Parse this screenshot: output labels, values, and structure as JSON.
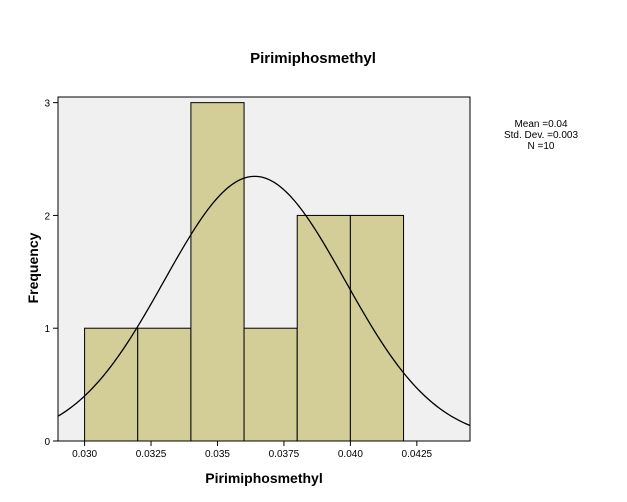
{
  "chart_data": {
    "type": "bar",
    "subtype": "histogram",
    "title": "Pirimiphosmethyl",
    "xlabel": "Pirimiphosmethyl",
    "ylabel": "Frequency",
    "bins": [
      {
        "start": 0.03,
        "end": 0.032,
        "count": 1
      },
      {
        "start": 0.032,
        "end": 0.034,
        "count": 1
      },
      {
        "start": 0.034,
        "end": 0.036,
        "count": 3
      },
      {
        "start": 0.036,
        "end": 0.038,
        "count": 1
      },
      {
        "start": 0.038,
        "end": 0.04,
        "count": 2
      },
      {
        "start": 0.04,
        "end": 0.042,
        "count": 2
      }
    ],
    "xlim": [
      0.029,
      0.0445
    ],
    "ylim": [
      0,
      3.05
    ],
    "xticks": [
      {
        "value": 0.03,
        "label": "0.030"
      },
      {
        "value": 0.0325,
        "label": "0.0325"
      },
      {
        "value": 0.035,
        "label": "0.035"
      },
      {
        "value": 0.0375,
        "label": "0.0375"
      },
      {
        "value": 0.04,
        "label": "0.040"
      },
      {
        "value": 0.0425,
        "label": "0.0425"
      }
    ],
    "yticks": [
      {
        "value": 0,
        "label": "0"
      },
      {
        "value": 1,
        "label": "1"
      },
      {
        "value": 2,
        "label": "2"
      },
      {
        "value": 3,
        "label": "3"
      }
    ],
    "normal_curve": {
      "mean": 0.0364,
      "sd": 0.0034,
      "n": 10,
      "bin_width": 0.002
    },
    "stats": {
      "mean": "Mean =0.04",
      "std_dev": "Std. Dev. =0.003",
      "n": "N =10"
    },
    "colors": {
      "bar_fill": "#d3ce98",
      "bar_stroke": "#000000",
      "plot_background": "#f0f0f0",
      "curve": "#000000"
    },
    "grid": false
  }
}
